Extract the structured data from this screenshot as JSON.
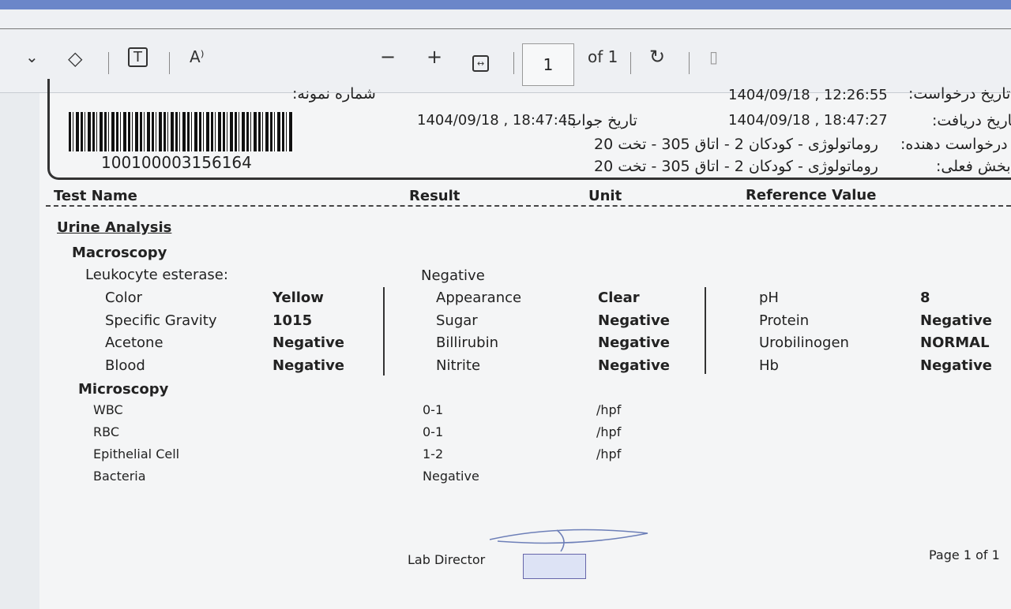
{
  "toolbar": {
    "page_current": "1",
    "page_total": "of 1",
    "icons": [
      "chevron-down-icon",
      "eraser-icon",
      "text-box-icon",
      "read-aloud-icon",
      "zoom-out-icon",
      "zoom-in-icon",
      "fit-width-icon",
      "rotate-icon",
      "page-view-icon"
    ]
  },
  "header": {
    "sample_label": "شماره نمونه:",
    "barcode_number": "100100003156164",
    "request_date_label": "تاریخ درخواست:",
    "request_date": "1404/09/18 , 12:26:55",
    "receive_date_label": "تاریخ دریافت:",
    "receive_date": "1404/09/18 , 18:47:27",
    "answer_date_label": "تاریخ جواب:",
    "answer_date": "1404/09/18 , 18:47:45",
    "requester_label": "درخواست دهنده:",
    "requester": "روماتولوژی - کودکان 2 - اتاق 305 - تخت 20",
    "ward_label": "بخش فعلی:",
    "ward": "روماتولوژی - کودکان 2 - اتاق 305 - تخت 20"
  },
  "columns": {
    "test": "Test Name",
    "result": "Result",
    "unit": "Unit",
    "ref": "Reference Value"
  },
  "section": "Urine Analysis",
  "macro": {
    "title": "Macroscopy",
    "leuko_label": "Leukocyte esterase:",
    "leuko_value": "Negative",
    "col1": [
      [
        "Color",
        "Yellow"
      ],
      [
        "Specific Gravity",
        "1015"
      ],
      [
        "Acetone",
        "Negative"
      ],
      [
        "Blood",
        "Negative"
      ]
    ],
    "col2": [
      [
        "Appearance",
        "Clear"
      ],
      [
        "Sugar",
        "Negative"
      ],
      [
        "Billirubin",
        "Negative"
      ],
      [
        "Nitrite",
        "Negative"
      ]
    ],
    "col3": [
      [
        "pH",
        "8"
      ],
      [
        "Protein",
        "Negative"
      ],
      [
        "Urobilinogen",
        "NORMAL"
      ],
      [
        "Hb",
        "Negative"
      ]
    ]
  },
  "micro": {
    "title": "Microscopy",
    "rows": [
      [
        "WBC",
        "0-1",
        "/hpf"
      ],
      [
        "RBC",
        "0-1",
        "/hpf"
      ],
      [
        "Epithelial Cell",
        "1-2",
        "/hpf"
      ],
      [
        "Bacteria",
        "Negative",
        ""
      ]
    ]
  },
  "footer": {
    "director": "Lab Director",
    "page": "Page 1 of 1"
  }
}
